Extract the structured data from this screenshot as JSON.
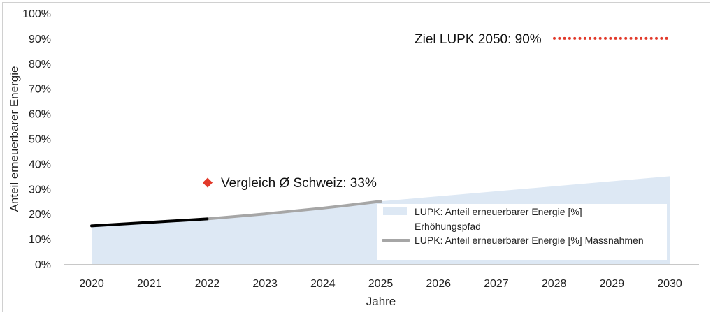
{
  "chart_data": {
    "type": "area",
    "x": [
      2020,
      2021,
      2022,
      2023,
      2024,
      2025,
      2026,
      2027,
      2028,
      2029,
      2030
    ],
    "xlabel": "Jahre",
    "ylabel": "Anteil erneuerbarer Energie",
    "ylim": [
      0,
      100
    ],
    "yticks": [
      "0%",
      "10%",
      "20%",
      "30%",
      "40%",
      "50%",
      "60%",
      "70%",
      "80%",
      "90%",
      "100%"
    ],
    "series": [
      {
        "name": "LUPK: Anteil erneuerbarer Energie [%] Erhöhungspfad",
        "kind": "area",
        "color": "#dde8f4",
        "x": [
          2020,
          2022,
          2025,
          2030
        ],
        "values": [
          15,
          18,
          25,
          35
        ]
      },
      {
        "name": "LUPK: Anteil erneuerbarer Energie [%] Massnahmen",
        "kind": "line",
        "color": "#a6a6a6",
        "x": [
          2022,
          2023,
          2024,
          2025
        ],
        "values": [
          18,
          20,
          22.3,
          25
        ]
      },
      {
        "kind": "line",
        "color": "#000000",
        "x": [
          2020,
          2021,
          2022
        ],
        "values": [
          15.2,
          16.6,
          18
        ]
      }
    ],
    "annotations": [
      {
        "text": "Vergleich Ø Schweiz: 33%",
        "x": 2022,
        "y": 33,
        "marker": "diamond",
        "color": "#e2392a"
      },
      {
        "text": "Ziel LUPK 2050: 90%",
        "y": 90,
        "x_from": 2028,
        "x_to": 2030,
        "style": "dotted",
        "color": "#e2392a"
      }
    ],
    "legend": {
      "position": "center-right",
      "entries": [
        "LUPK: Anteil erneuerbarer Energie [%]",
        "Erhöhungspfad",
        "LUPK: Anteil erneuerbarer Energie [%] Massnahmen"
      ]
    },
    "grid": false
  }
}
